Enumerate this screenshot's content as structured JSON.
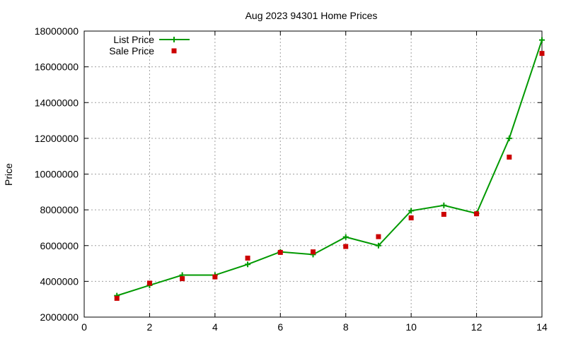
{
  "chart_data": {
    "type": "line",
    "title": "Aug 2023 94301 Home Prices",
    "xlabel": "",
    "ylabel": "Price",
    "xlim": [
      0,
      14
    ],
    "ylim": [
      2000000,
      18000000
    ],
    "xticks": [
      0,
      2,
      4,
      6,
      8,
      10,
      12,
      14
    ],
    "yticks": [
      2000000,
      4000000,
      6000000,
      8000000,
      10000000,
      12000000,
      14000000,
      16000000,
      18000000
    ],
    "grid": true,
    "legend_position": "top-left",
    "series": [
      {
        "name": "List Price",
        "style": "line+cross",
        "color": "#009900",
        "points": [
          [
            1,
            3200000
          ],
          [
            2,
            3780000
          ],
          [
            3,
            4350000
          ],
          [
            4,
            4350000
          ],
          [
            5,
            4950000
          ],
          [
            6,
            5650000
          ],
          [
            7,
            5500000
          ],
          [
            8,
            6480000
          ],
          [
            9,
            6000000
          ],
          [
            10,
            7950000
          ],
          [
            11,
            8250000
          ],
          [
            12,
            7800000
          ],
          [
            13,
            12000000
          ],
          [
            14,
            17500000
          ]
        ]
      },
      {
        "name": "Sale Price",
        "style": "square",
        "color": "#cc0000",
        "points": [
          [
            1,
            3050000
          ],
          [
            2,
            3900000
          ],
          [
            3,
            4150000
          ],
          [
            4,
            4250000
          ],
          [
            5,
            5300000
          ],
          [
            6,
            5620000
          ],
          [
            7,
            5650000
          ],
          [
            8,
            5950000
          ],
          [
            9,
            6500000
          ],
          [
            10,
            7550000
          ],
          [
            11,
            7750000
          ],
          [
            12,
            7780000
          ],
          [
            13,
            10950000
          ],
          [
            14,
            16750000
          ]
        ]
      }
    ]
  }
}
